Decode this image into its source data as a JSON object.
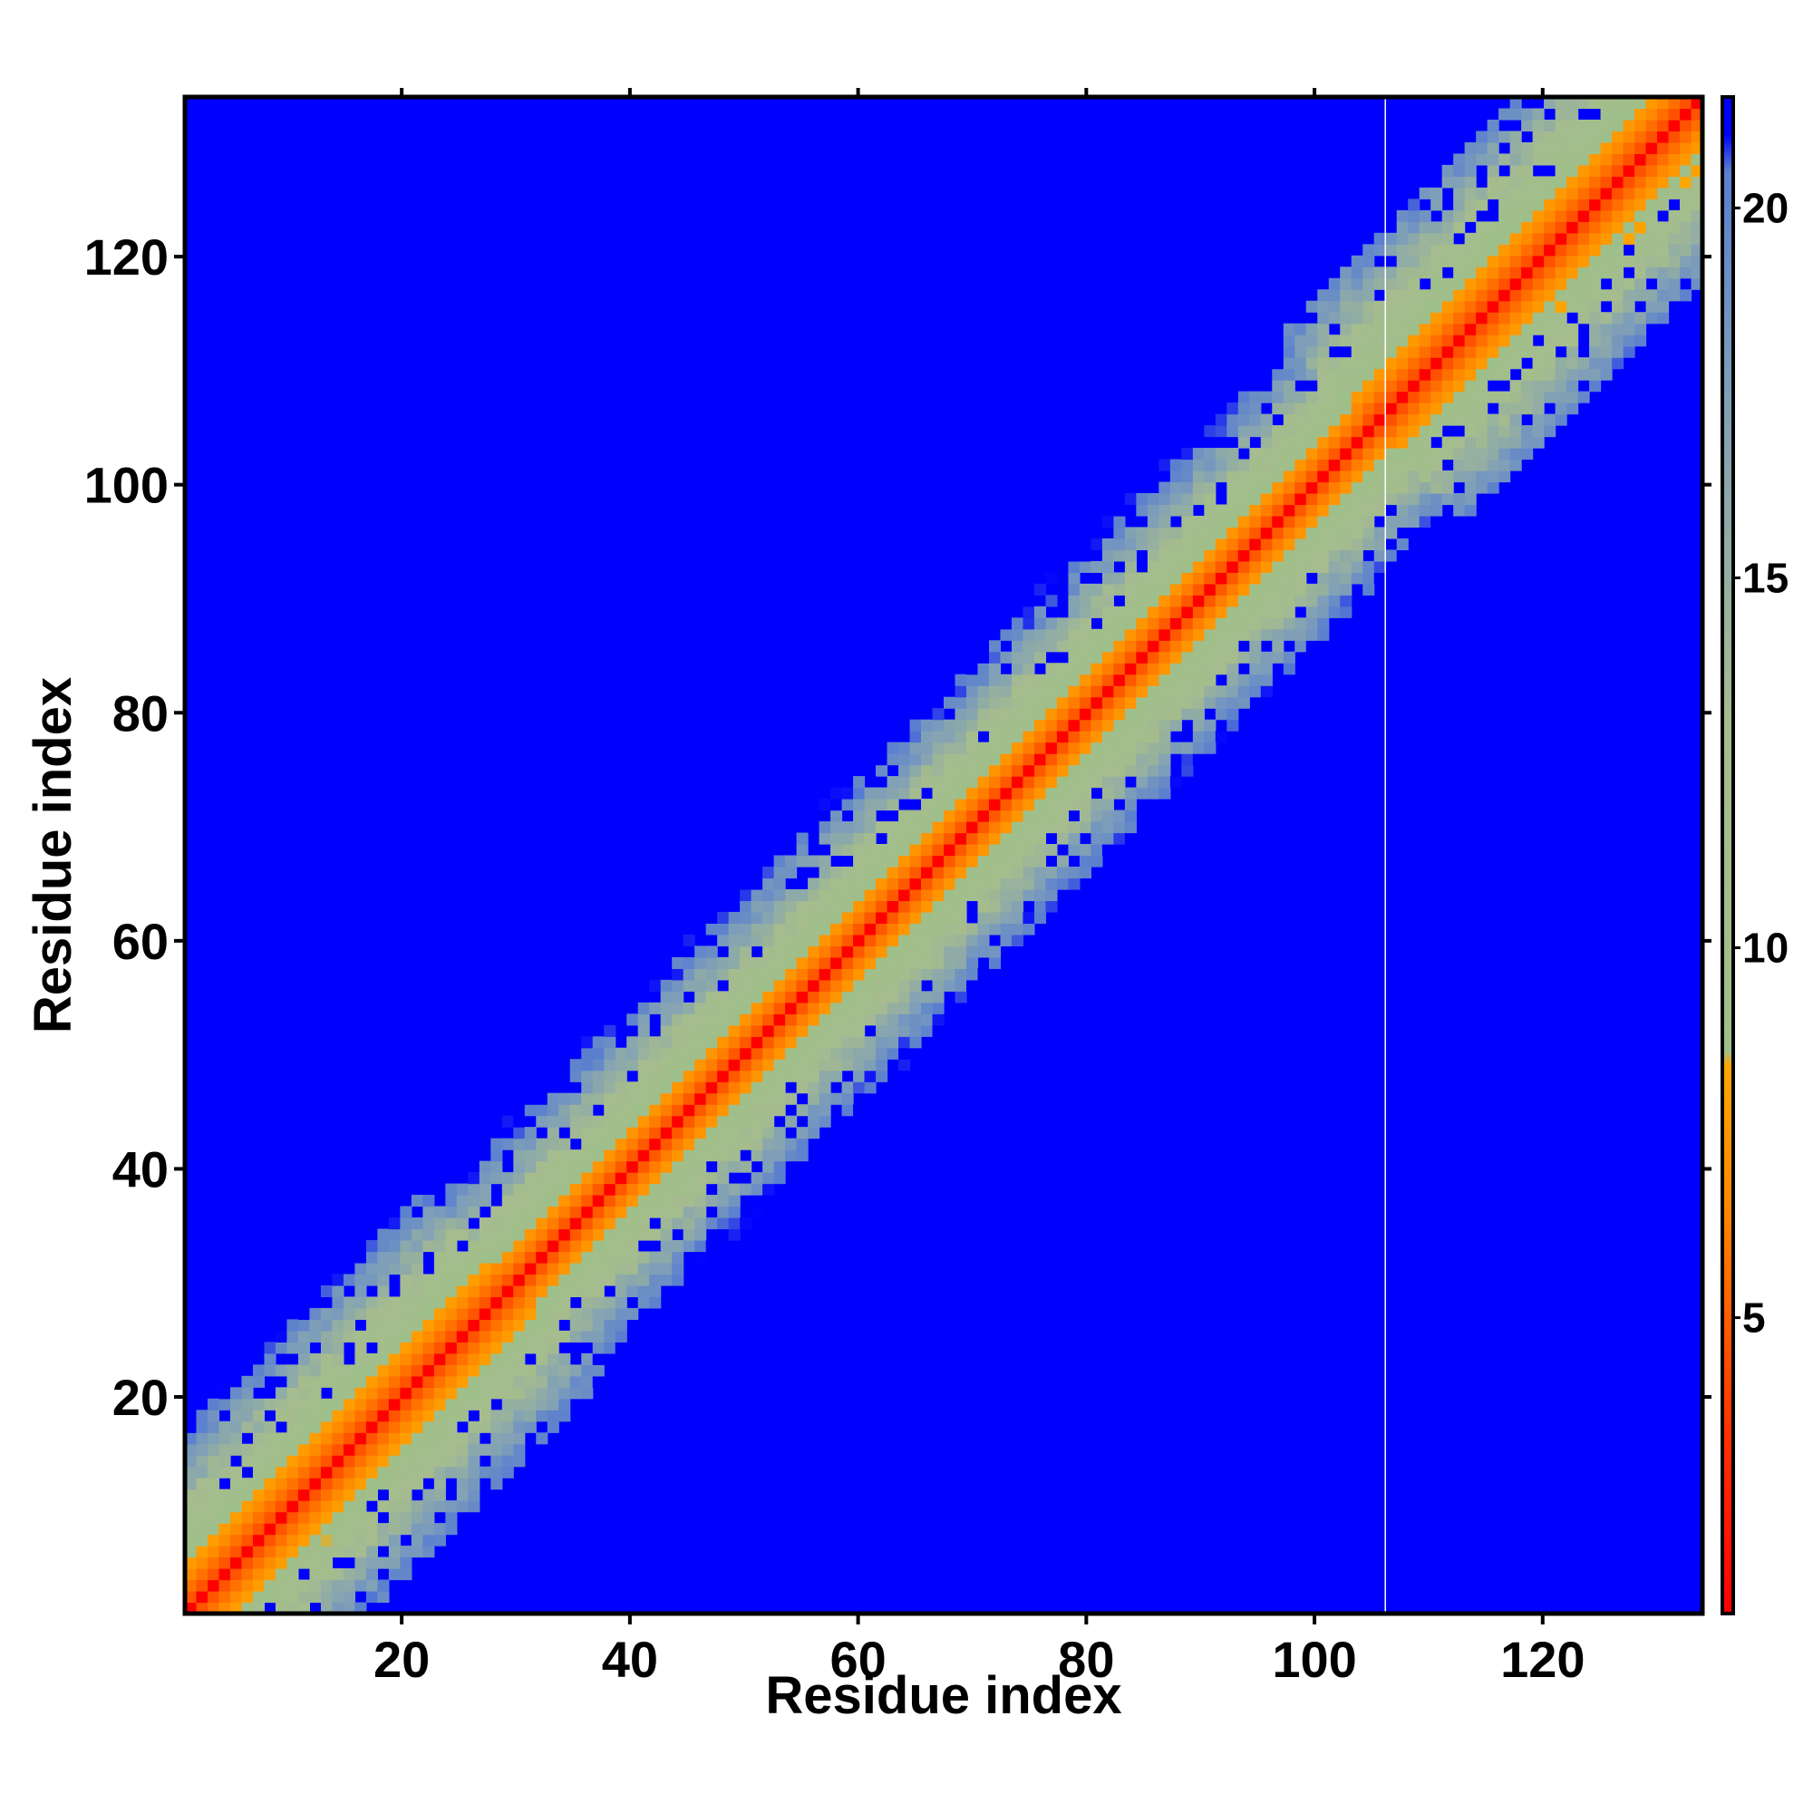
{
  "chart_data": {
    "type": "heatmap",
    "title": "",
    "xlabel": "Residue index",
    "ylabel": "Residue index",
    "xlim": [
      1,
      134
    ],
    "ylim": [
      1,
      134
    ],
    "n_residues": 134,
    "x_ticks": [
      20,
      40,
      60,
      80,
      100,
      120
    ],
    "x_tick_labels": [
      "20",
      "40",
      "60",
      "80",
      "100",
      "120"
    ],
    "y_ticks": [
      20,
      40,
      60,
      80,
      100,
      120
    ],
    "y_tick_labels": [
      "20",
      "40",
      "60",
      "80",
      "100",
      "120"
    ],
    "colorbar": {
      "range": [
        1,
        21.5
      ],
      "ticks": [
        5,
        10,
        15,
        20
      ],
      "tick_labels": [
        "5",
        "10",
        "15",
        "20"
      ],
      "stops": [
        {
          "value": 1,
          "color": "#ff0000"
        },
        {
          "value": 3.5,
          "color": "#ff3300"
        },
        {
          "value": 6.5,
          "color": "#ff8800"
        },
        {
          "value": 8.4,
          "color": "#ffa500"
        },
        {
          "value": 8.6,
          "color": "#9fbf8a"
        },
        {
          "value": 13,
          "color": "#a6bc8e"
        },
        {
          "value": 17.5,
          "color": "#7f9fb8"
        },
        {
          "value": 20.5,
          "color": "#5a7fcf"
        },
        {
          "value": 21,
          "color": "#0000ff"
        }
      ],
      "background_color": "#0000ff"
    },
    "matrix_description": "Pairwise residue distance map; values rise with |i-j| along the diagonal, saturating (blue) beyond ~21",
    "gap_column_residue": 107
  }
}
